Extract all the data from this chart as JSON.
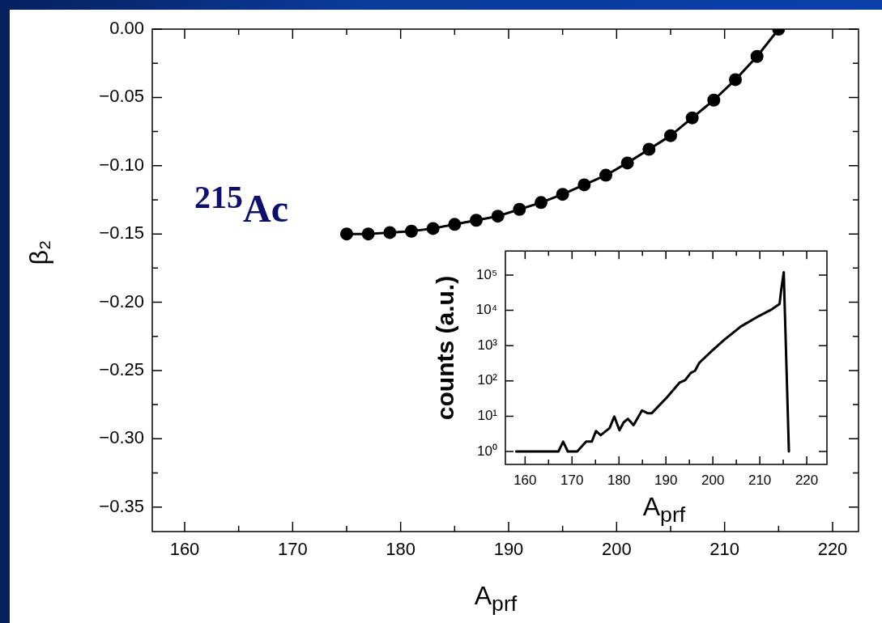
{
  "chart_data": [
    {
      "type": "line",
      "xlabel": "A$_{prf}$",
      "ylabel": "β₂",
      "annotations": [
        "$^{215}$Ac"
      ],
      "x": [
        175,
        177,
        179,
        181,
        183,
        185,
        187,
        189,
        191,
        193,
        195,
        197,
        199,
        201,
        203,
        205,
        207,
        209,
        211,
        213,
        215
      ],
      "values": [
        -0.15,
        -0.15,
        -0.149,
        -0.148,
        -0.146,
        -0.143,
        -0.14,
        -0.137,
        -0.132,
        -0.127,
        -0.121,
        -0.114,
        -0.107,
        -0.098,
        -0.088,
        -0.078,
        -0.065,
        -0.052,
        -0.037,
        -0.02,
        0.0
      ],
      "color": "#000000",
      "marker": "circle",
      "line_style": "solid",
      "xlim": [
        157,
        222.4
      ],
      "ylim": [
        -0.368,
        0.0
      ],
      "xticks": [
        160,
        {
          "value": 165,
          "label": null
        },
        170,
        {
          "value": 175,
          "label": null
        },
        180,
        {
          "value": 185,
          "label": null
        },
        190,
        {
          "value": 195,
          "label": null
        },
        200,
        {
          "value": 205,
          "label": null
        },
        210,
        {
          "value": 215,
          "label": null
        },
        220
      ],
      "yticks": [
        {
          "value": 0,
          "label": "0.00"
        },
        {
          "value": -0.025,
          "label": null
        },
        {
          "value": -0.05,
          "label": "−0.05"
        },
        {
          "value": -0.075,
          "label": null
        },
        {
          "value": -0.1,
          "label": "−0.10"
        },
        {
          "value": -0.125,
          "label": null
        },
        {
          "value": -0.15,
          "label": "−0.15"
        },
        {
          "value": -0.175,
          "label": null
        },
        {
          "value": -0.2,
          "label": "−0.20"
        },
        {
          "value": -0.225,
          "label": null
        },
        {
          "value": -0.25,
          "label": "−0.25"
        },
        {
          "value": -0.275,
          "label": null
        },
        {
          "value": -0.3,
          "label": "−0.30"
        },
        {
          "value": -0.325,
          "label": null
        },
        {
          "value": -0.35,
          "label": "−0.35"
        }
      ]
    },
    {
      "type": "line",
      "xlabel": "A$_{prf}$",
      "ylabel": "counts (a.u.)",
      "log": "y",
      "x": [
        158.1,
        167.1,
        168.1,
        169.1,
        171.1,
        173,
        174.2,
        175.1,
        176.1,
        178,
        179,
        180.1,
        181,
        181.9,
        183.1,
        184.9,
        186.1,
        187,
        190.2,
        192.9,
        194.1,
        195.3,
        196.2,
        197.1,
        199.8,
        202.4,
        206,
        209.9,
        212.3,
        214.2,
        214.6,
        215.1,
        216.2
      ],
      "values": [
        1,
        1,
        1.9,
        1,
        1,
        1.9,
        1.9,
        3.8,
        2.9,
        4.6,
        9.8,
        4,
        6.7,
        8.4,
        5.6,
        14.5,
        12.2,
        12.2,
        34,
        89,
        105,
        169,
        194,
        324,
        710,
        1450,
        3500,
        7000,
        10200,
        15000,
        41000,
        120000,
        1
      ],
      "color": "#000000",
      "marker": "none",
      "line_style": "solid",
      "xlim": [
        155.8,
        224.3
      ],
      "ylim": [
        0.43,
        480000
      ],
      "xticks": [
        160,
        {
          "value": 165,
          "label": null
        },
        170,
        {
          "value": 175,
          "label": null
        },
        180,
        {
          "value": 185,
          "label": null
        },
        190,
        {
          "value": 195,
          "label": null
        },
        200,
        {
          "value": 205,
          "label": null
        },
        210,
        {
          "value": 215,
          "label": null
        },
        220
      ],
      "yticks": [
        {
          "value": 1,
          "label": "10⁰"
        },
        {
          "value": 10,
          "label": "10¹"
        },
        {
          "value": 100,
          "label": "10²"
        },
        {
          "value": 1000,
          "label": "10³"
        },
        {
          "value": 10000,
          "label": "10⁴"
        },
        {
          "value": 100000,
          "label": "10⁵"
        }
      ]
    }
  ]
}
